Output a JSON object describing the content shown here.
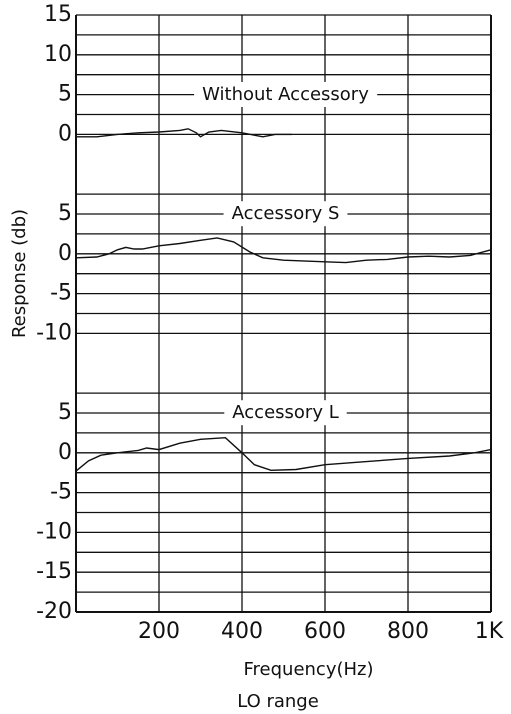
{
  "chart_data": [
    {
      "type": "line",
      "title": "Without Accessory",
      "ylabel": "Response (db)",
      "xlim": [
        0,
        1000
      ],
      "ylim": [
        -5,
        15
      ],
      "yticks": [
        15,
        10,
        5,
        0
      ],
      "grid": true,
      "x": [
        0,
        50,
        100,
        150,
        200,
        250,
        270,
        290,
        300,
        320,
        350,
        400,
        430,
        450,
        480,
        520
      ],
      "series": [
        {
          "color": "#111111",
          "values": [
            -0.3,
            -0.3,
            0,
            0.2,
            0.3,
            0.5,
            0.7,
            0.2,
            -0.3,
            0.3,
            0.5,
            0.2,
            -0.1,
            -0.3,
            0,
            0
          ]
        }
      ]
    },
    {
      "type": "line",
      "title": "Accessory  S",
      "xlim": [
        0,
        1000
      ],
      "ylim": [
        -15,
        10
      ],
      "yticks": [
        5,
        0,
        -5,
        -10
      ],
      "grid": true,
      "x": [
        0,
        50,
        80,
        100,
        120,
        140,
        160,
        200,
        250,
        300,
        340,
        380,
        420,
        450,
        500,
        600,
        650,
        700,
        750,
        800,
        850,
        900,
        950,
        1000
      ],
      "series": [
        {
          "color": "#111111",
          "values": [
            -0.5,
            -0.4,
            0,
            0.5,
            0.8,
            0.6,
            0.6,
            1,
            1.3,
            1.7,
            2,
            1.5,
            0.2,
            -0.5,
            -0.8,
            -1,
            -1.1,
            -0.8,
            -0.7,
            -0.4,
            -0.3,
            -0.4,
            -0.2,
            0.5
          ]
        }
      ]
    },
    {
      "type": "line",
      "title": "Accessory  L",
      "xlabel": "Frequency(Hz)",
      "subtitle": "LO range",
      "xlim": [
        0,
        1000
      ],
      "ylim": [
        -20,
        10
      ],
      "yticks": [
        5,
        0,
        -5,
        -10,
        -15,
        -20
      ],
      "grid": true,
      "xticks": [
        200,
        400,
        600,
        800,
        {
          "value": 1000,
          "label": "1K"
        }
      ],
      "x": [
        0,
        30,
        60,
        100,
        150,
        170,
        200,
        250,
        300,
        360,
        400,
        430,
        470,
        530,
        600,
        700,
        800,
        900,
        960,
        1000
      ],
      "series": [
        {
          "color": "#111111",
          "values": [
            -2.3,
            -1,
            -0.3,
            0,
            0.3,
            0.6,
            0.4,
            1.2,
            1.7,
            1.9,
            0,
            -1.5,
            -2.2,
            -2.1,
            -1.5,
            -1.1,
            -0.7,
            -0.4,
            0,
            0.4
          ]
        }
      ]
    }
  ]
}
